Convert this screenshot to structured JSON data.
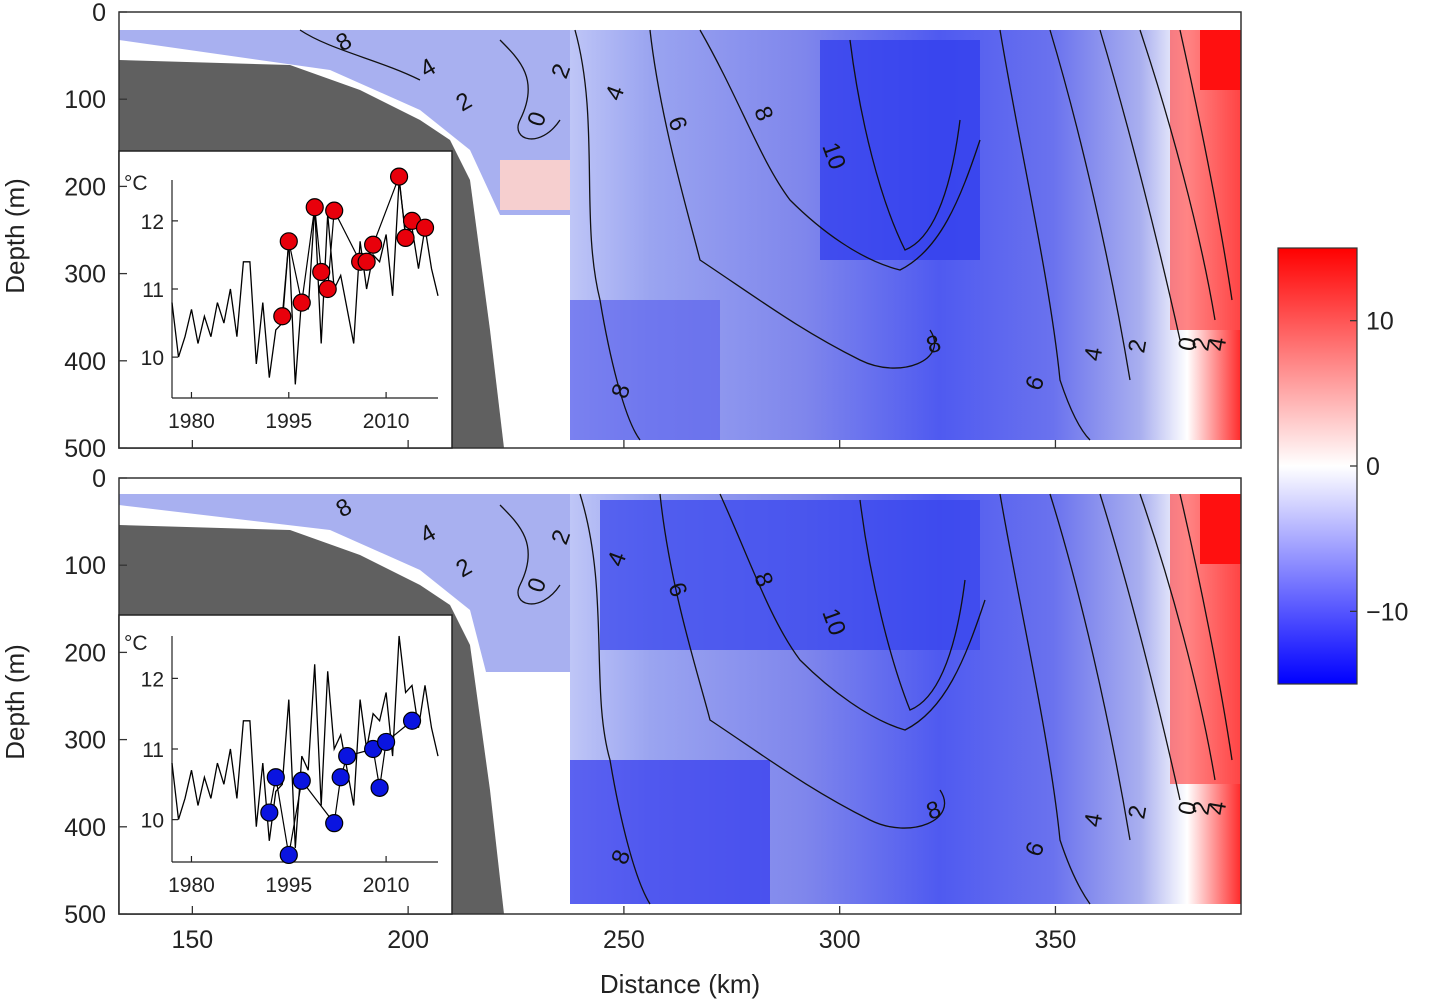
{
  "chart_data": {
    "type": "heatmap",
    "description_panels": 2,
    "xlabel": "Distance (km)",
    "ylabel": "Depth (m)",
    "xlim": [
      133,
      393
    ],
    "ylim": [
      500,
      0
    ],
    "x_ticks": [
      150,
      200,
      250,
      300,
      350
    ],
    "y_ticks": [
      0,
      100,
      200,
      300,
      400,
      500
    ],
    "colorbar": {
      "range": [
        -15,
        15
      ],
      "ticks": [
        10,
        0,
        -10
      ],
      "tick_labels": [
        "10",
        "0",
        "−10"
      ],
      "colors": [
        "#0000ff",
        "#ffffff",
        "#ff0000"
      ]
    },
    "panels": [
      {
        "name": "top",
        "contour_labels": [
          "8",
          "4",
          "2",
          "0",
          "2",
          "4",
          "6",
          "8",
          "10",
          "8",
          "8",
          "6",
          "4",
          "2",
          "0",
          "2",
          "4"
        ],
        "inset": {
          "ylabel": "°C",
          "xlim": [
            1977,
            2018
          ],
          "ylim": [
            9.4,
            12.6
          ],
          "x_ticks": [
            1980,
            1995,
            2010
          ],
          "y_ticks": [
            10,
            11,
            12
          ],
          "line": {
            "x": [
              1977,
              1978,
              1979,
              1980,
              1981,
              1982,
              1983,
              1984,
              1985,
              1986,
              1987,
              1988,
              1989,
              1990,
              1991,
              1992,
              1993,
              1994,
              1995,
              1996,
              1997,
              1998,
              1999,
              2000,
              2001,
              2002,
              2003,
              2004,
              2005,
              2006,
              2007,
              2008,
              2009,
              2010,
              2011,
              2012,
              2013,
              2014,
              2015,
              2016,
              2017,
              2018
            ],
            "y": [
              10.8,
              10,
              10.3,
              10.7,
              10.2,
              10.6,
              10.3,
              10.8,
              10.5,
              11,
              10.3,
              11.4,
              11.4,
              9.9,
              10.8,
              9.7,
              10.4,
              10.5,
              11.7,
              9.6,
              10.9,
              10.7,
              12.2,
              10.2,
              12.1,
              11,
              11.2,
              10.7,
              10.2,
              11.7,
              11,
              11.5,
              11.4,
              11.8,
              10.9,
              12.6,
              11.8,
              11.9,
              11.3,
              11.9,
              11.3,
              10.9
            ],
            "color": "#000000"
          },
          "markers": {
            "x": [
              1994,
              1995,
              1997,
              1999,
              2000,
              2001,
              2002,
              2006,
              2007,
              2008,
              2012,
              2013,
              2014,
              2016
            ],
            "y": [
              10.6,
              11.7,
              10.8,
              12.2,
              11.25,
              11.0,
              12.15,
              11.4,
              11.4,
              11.65,
              12.65,
              11.75,
              12.0,
              11.9
            ],
            "color": "#e8000b"
          }
        }
      },
      {
        "name": "bottom",
        "contour_labels": [
          "8",
          "4",
          "2",
          "0",
          "2",
          "4",
          "6",
          "8",
          "10",
          "8",
          "8",
          "6",
          "4",
          "2",
          "0",
          "2",
          "4"
        ],
        "inset": {
          "ylabel": "°C",
          "xlim": [
            1977,
            2018
          ],
          "ylim": [
            9.4,
            12.6
          ],
          "x_ticks": [
            1980,
            1995,
            2010
          ],
          "y_ticks": [
            10,
            11,
            12
          ],
          "line": {
            "x": [
              1977,
              1978,
              1979,
              1980,
              1981,
              1982,
              1983,
              1984,
              1985,
              1986,
              1987,
              1988,
              1989,
              1990,
              1991,
              1992,
              1993,
              1994,
              1995,
              1996,
              1997,
              1998,
              1999,
              2000,
              2001,
              2002,
              2003,
              2004,
              2005,
              2006,
              2007,
              2008,
              2009,
              2010,
              2011,
              2012,
              2013,
              2014,
              2015,
              2016,
              2017,
              2018
            ],
            "y": [
              10.8,
              10,
              10.3,
              10.7,
              10.2,
              10.6,
              10.3,
              10.8,
              10.5,
              11,
              10.3,
              11.4,
              11.4,
              9.9,
              10.8,
              9.7,
              10.4,
              10.5,
              11.7,
              9.6,
              10.9,
              10.7,
              12.2,
              10.2,
              12.1,
              11,
              11.2,
              10.7,
              10.2,
              11.7,
              11,
              11.5,
              11.4,
              11.8,
              10.9,
              12.6,
              11.8,
              11.9,
              11.3,
              11.9,
              11.3,
              10.9
            ],
            "color": "#000000"
          },
          "markers": {
            "x": [
              1992,
              1993,
              1995,
              1997,
              2002,
              2003,
              2004,
              2008,
              2009,
              2010,
              2014
            ],
            "y": [
              10.1,
              10.6,
              9.5,
              10.55,
              9.95,
              10.6,
              10.9,
              11.0,
              10.45,
              11.1,
              11.4
            ],
            "color": "#0a14e0"
          }
        }
      }
    ]
  }
}
